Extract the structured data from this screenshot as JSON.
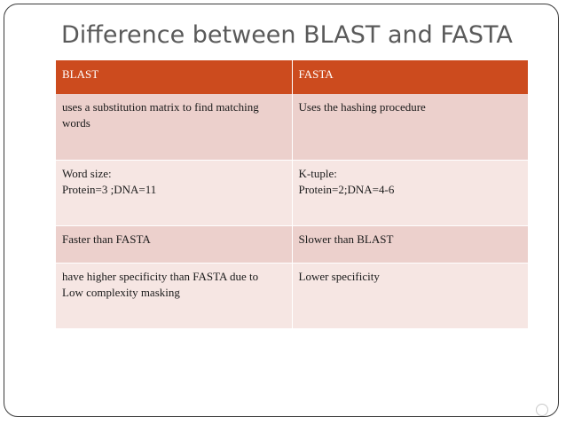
{
  "title": "Difference between BLAST and FASTA",
  "table": {
    "headers": [
      "BLAST",
      "FASTA"
    ],
    "rows": [
      {
        "blast": [
          "uses a substitution matrix to find matching",
          "words"
        ],
        "fasta": [
          "Uses the hashing procedure"
        ]
      },
      {
        "blast": [
          "Word size:",
          "Protein=3 ;DNA=11"
        ],
        "fasta": [
          "K-tuple:",
          "Protein=2;DNA=4-6"
        ]
      },
      {
        "blast": [
          "Faster than FASTA"
        ],
        "fasta": [
          "Slower than BLAST"
        ]
      },
      {
        "blast": [
          "have higher specificity than FASTA due to",
          "Low complexity masking"
        ],
        "fasta": [
          "Lower specificity"
        ]
      }
    ]
  },
  "colors": {
    "header_bg": "#cc4b1e",
    "row_odd_bg": "#ecd0cc",
    "row_even_bg": "#f6e6e3",
    "title_color": "#5a5a5a"
  }
}
